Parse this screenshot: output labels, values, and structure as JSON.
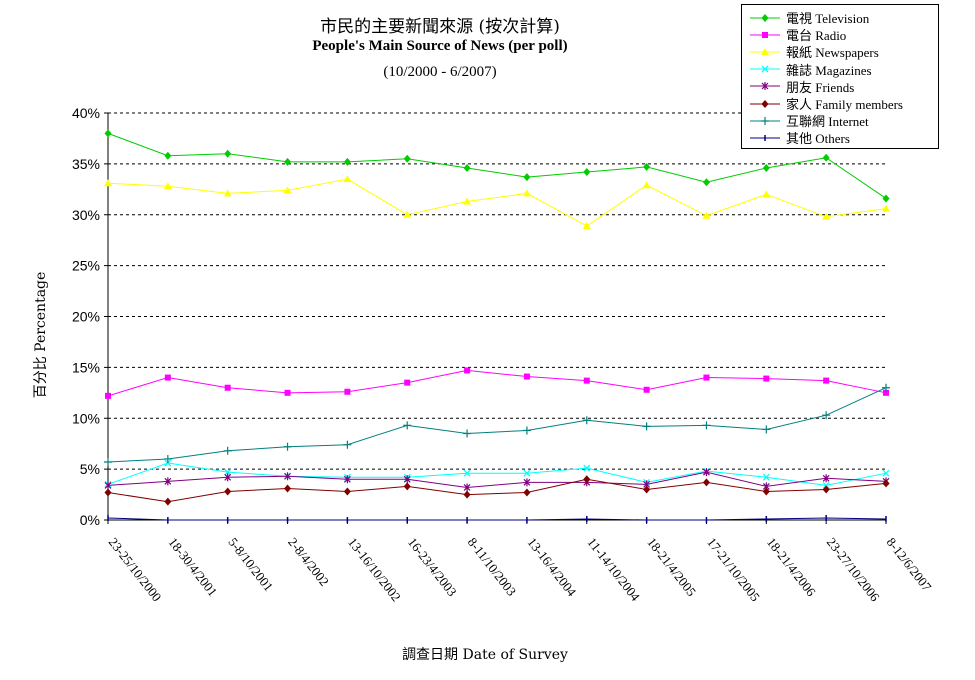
{
  "title": "市民的主要新聞來源 (按次計算)",
  "subtitle": "People's Main Source of News (per poll)",
  "period": "(10/2000 - 6/2007)",
  "chart_data": {
    "type": "line",
    "xlabel": "調查日期 Date of Survey",
    "ylabel": "百分比 Percentage",
    "ylim": [
      0,
      40
    ],
    "yticks": [
      "0%",
      "5%",
      "10%",
      "15%",
      "20%",
      "25%",
      "30%",
      "35%",
      "40%"
    ],
    "grid": "horizontal dashed",
    "legend_position": "top-right",
    "categories": [
      "23-25/10/2000",
      "18-30/4/2001",
      "5-8/10/2001",
      "2-8/4/2002",
      "13-16/10/2002",
      "16-23/4/2003",
      "8-11/10/2003",
      "13-16/4/2004",
      "11-14/10/2004",
      "18-21/4/2005",
      "17-21/10/2005",
      "18-21/4/2006",
      "23-27/10/2006",
      "8-12/6/2007"
    ],
    "series": [
      {
        "name": "電視 Television",
        "color": "#00cc00",
        "marker": "diamond",
        "values": [
          38.0,
          35.8,
          36.0,
          35.2,
          35.2,
          35.5,
          34.6,
          33.7,
          34.2,
          34.7,
          33.2,
          34.6,
          35.6,
          31.6
        ]
      },
      {
        "name": "電台 Radio",
        "color": "#ff00ff",
        "marker": "square",
        "values": [
          12.2,
          14.0,
          13.0,
          12.5,
          12.6,
          13.5,
          14.7,
          14.1,
          13.7,
          12.8,
          14.0,
          13.9,
          13.7,
          12.5
        ]
      },
      {
        "name": "報紙 Newspapers",
        "color": "#ffff00",
        "marker": "triangle",
        "values": [
          33.1,
          32.8,
          32.1,
          32.4,
          33.5,
          30.0,
          31.3,
          32.1,
          28.9,
          32.9,
          29.9,
          32.0,
          29.8,
          30.6
        ]
      },
      {
        "name": "雜誌 Magazines",
        "color": "#00ffff",
        "marker": "x",
        "values": [
          3.5,
          5.6,
          4.7,
          4.3,
          4.2,
          4.2,
          4.6,
          4.6,
          5.1,
          3.7,
          4.8,
          4.2,
          3.4,
          4.6
        ]
      },
      {
        "name": "朋友 Friends",
        "color": "#800080",
        "marker": "star",
        "values": [
          3.4,
          3.8,
          4.2,
          4.3,
          4.0,
          4.0,
          3.2,
          3.7,
          3.7,
          3.5,
          4.7,
          3.3,
          4.1,
          3.8
        ]
      },
      {
        "name": "家人 Family members",
        "color": "#800000",
        "marker": "diamond",
        "values": [
          2.7,
          1.8,
          2.8,
          3.1,
          2.8,
          3.3,
          2.5,
          2.7,
          4.0,
          3.0,
          3.7,
          2.8,
          3.0,
          3.6
        ]
      },
      {
        "name": "互聯網 Internet",
        "color": "#008080",
        "marker": "plus",
        "values": [
          5.7,
          6.0,
          6.8,
          7.2,
          7.4,
          9.3,
          8.5,
          8.8,
          9.8,
          9.2,
          9.3,
          8.9,
          10.3,
          13.0
        ]
      },
      {
        "name": "其他 Others",
        "color": "#000080",
        "marker": "bar",
        "values": [
          0.2,
          0.0,
          0.0,
          0.0,
          0.0,
          0.0,
          0.0,
          0.0,
          0.1,
          0.0,
          0.0,
          0.1,
          0.2,
          0.1
        ]
      }
    ]
  }
}
